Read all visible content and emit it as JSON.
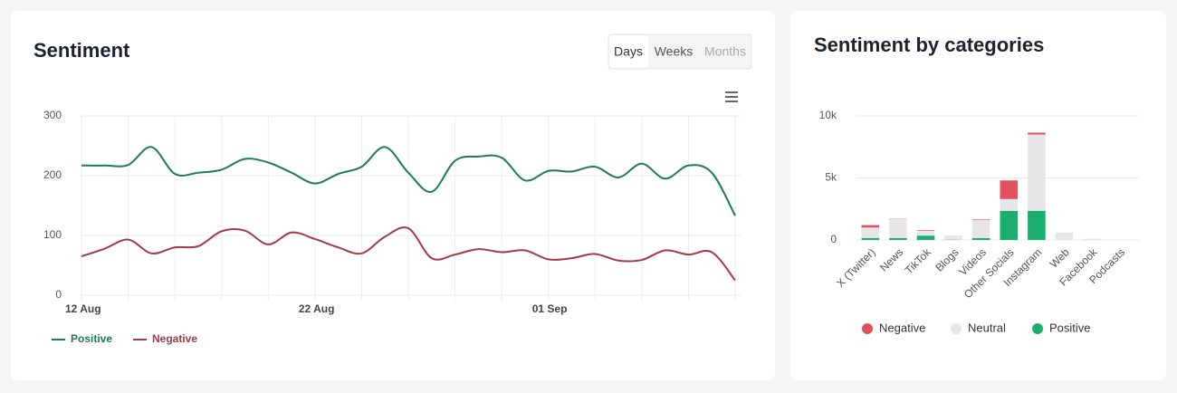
{
  "controls": [
    "Days",
    "Weeks",
    "Months"
  ],
  "chart_data": [
    {
      "type": "line",
      "title": "Sentiment",
      "categories": [
        "12 Aug",
        null,
        null,
        null,
        null,
        null,
        null,
        null,
        null,
        null,
        "22 Aug",
        null,
        null,
        null,
        null,
        null,
        null,
        null,
        null,
        null,
        "01 Sep",
        null,
        null,
        null,
        null,
        null,
        null,
        null,
        null
      ],
      "series": [
        {
          "name": "Positive",
          "color": "#1f7a55",
          "values": [
            217,
            217,
            218,
            248,
            203,
            205,
            210,
            228,
            222,
            205,
            187,
            203,
            215,
            248,
            205,
            173,
            225,
            232,
            230,
            192,
            208,
            207,
            215,
            197,
            220,
            195,
            217,
            205,
            133
          ]
        },
        {
          "name": "Negative",
          "color": "#a23b48",
          "values": [
            65,
            78,
            93,
            70,
            80,
            82,
            107,
            108,
            85,
            105,
            94,
            80,
            70,
            98,
            112,
            62,
            68,
            77,
            72,
            75,
            60,
            62,
            69,
            58,
            59,
            75,
            68,
            72,
            25
          ]
        }
      ],
      "ylim": [
        0,
        300
      ],
      "yticks": [
        0,
        100,
        200,
        300
      ],
      "grid": true,
      "legend": "bottom-left"
    },
    {
      "type": "bar",
      "title": "Sentiment by categories",
      "stacked": true,
      "categories": [
        "X (Twitter)",
        "News",
        "TikTok",
        "Blogs",
        "Videos",
        "Other Socials",
        "Instagram",
        "Web",
        "Facebook",
        "Podcasts"
      ],
      "series": [
        {
          "name": "Negative",
          "color": "#e05260",
          "values": [
            200,
            20,
            50,
            0,
            50,
            1500,
            150,
            0,
            0,
            0
          ]
        },
        {
          "name": "Neutral",
          "color": "#e6e6e8",
          "values": [
            850,
            1550,
            400,
            330,
            1450,
            950,
            6150,
            600,
            100,
            30
          ]
        },
        {
          "name": "Positive",
          "color": "#1aae6f",
          "values": [
            150,
            150,
            350,
            20,
            150,
            2350,
            2350,
            0,
            0,
            0
          ]
        }
      ],
      "ylim": [
        0,
        10000
      ],
      "yticks": [
        0,
        {
          "value": 5000,
          "label": "5k"
        },
        {
          "value": 10000,
          "label": "10k"
        }
      ],
      "grid": true,
      "legend": "bottom"
    }
  ]
}
